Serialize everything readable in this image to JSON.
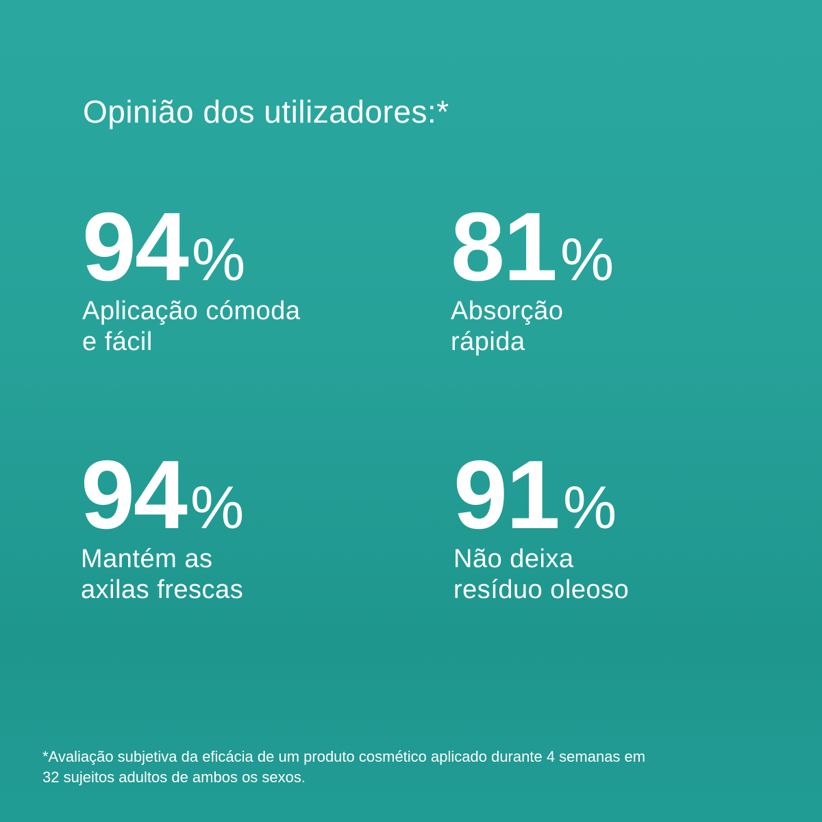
{
  "title": "Opinião dos utilizadores:*",
  "stats": [
    {
      "value": 94,
      "unit": "%",
      "label": [
        "Aplicação cómoda",
        "e fácil"
      ]
    },
    {
      "value": 81,
      "unit": "%",
      "label": [
        "Absorção",
        "rápida"
      ]
    },
    {
      "value": 94,
      "unit": "%",
      "label": [
        "Mantém as",
        "axilas frescas"
      ]
    },
    {
      "value": 91,
      "unit": "%",
      "label": [
        "Não deixa",
        "resíduo oleoso"
      ]
    }
  ],
  "footnote": [
    "*Avaliação subjetiva da eficácia de um produto cosmético aplicado durante 4 semanas em",
    "32 sujeitos adultos de ambos os sexos."
  ]
}
